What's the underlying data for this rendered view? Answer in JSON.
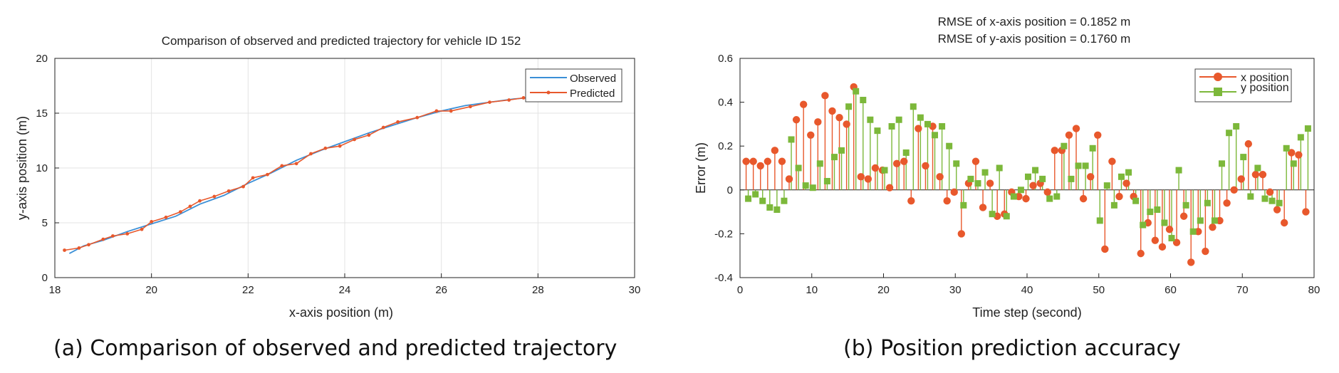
{
  "captions": {
    "a": "(a) Comparison of observed and predicted trajectory",
    "b": "(b) Position prediction accuracy"
  },
  "chart_data": [
    {
      "type": "line",
      "title": "Comparison of observed and predicted trajectory for vehicle ID  152",
      "xlabel": "x-axis position (m)",
      "ylabel": "y-axis position (m)",
      "xlim": [
        18,
        30
      ],
      "ylim": [
        0,
        20
      ],
      "xticks": [
        18,
        20,
        22,
        24,
        26,
        28,
        30
      ],
      "yticks": [
        0,
        5,
        10,
        15,
        20
      ],
      "grid": true,
      "legend_position": "top-right",
      "series": [
        {
          "name": "Observed",
          "color": "#3b8fd6",
          "marker": "none",
          "x": [
            18.3,
            18.6,
            19.0,
            19.5,
            20.0,
            20.5,
            21.0,
            21.5,
            22.0,
            22.5,
            23.0,
            23.5,
            24.0,
            24.5,
            25.0,
            25.5,
            26.0,
            26.5,
            27.0,
            27.5,
            27.8
          ],
          "y": [
            2.2,
            2.9,
            3.4,
            4.2,
            4.9,
            5.6,
            6.7,
            7.5,
            8.6,
            9.6,
            10.7,
            11.6,
            12.4,
            13.2,
            13.9,
            14.6,
            15.2,
            15.7,
            16.0,
            16.3,
            16.4
          ]
        },
        {
          "name": "Predicted",
          "color": "#e8582c",
          "marker": "dot",
          "x": [
            18.2,
            18.5,
            18.7,
            19.0,
            19.2,
            19.5,
            19.8,
            20.0,
            20.3,
            20.6,
            20.8,
            21.0,
            21.3,
            21.6,
            21.9,
            22.1,
            22.4,
            22.7,
            23.0,
            23.3,
            23.6,
            23.9,
            24.2,
            24.5,
            24.8,
            25.1,
            25.5,
            25.9,
            26.2,
            26.6,
            27.0,
            27.4,
            27.7
          ],
          "y": [
            2.5,
            2.7,
            3.0,
            3.5,
            3.8,
            4.0,
            4.4,
            5.1,
            5.5,
            6.0,
            6.5,
            7.0,
            7.4,
            7.9,
            8.3,
            9.1,
            9.4,
            10.2,
            10.4,
            11.3,
            11.8,
            12.0,
            12.6,
            13.0,
            13.7,
            14.2,
            14.6,
            15.2,
            15.2,
            15.6,
            16.0,
            16.2,
            16.4
          ]
        }
      ]
    },
    {
      "type": "stem",
      "title": "RMSE of x-axis position = 0.1852 m",
      "subtitle": "RMSE of y-axis position = 0.1760 m",
      "xlabel": "Time step (second)",
      "ylabel": "Error (m)",
      "xlim": [
        0,
        80
      ],
      "ylim": [
        -0.4,
        0.6
      ],
      "xticks": [
        0,
        10,
        20,
        30,
        40,
        50,
        60,
        70,
        80
      ],
      "yticks": [
        -0.4,
        -0.2,
        0,
        0.2,
        0.4,
        0.6
      ],
      "grid": false,
      "legend_position": "top-right",
      "x": [
        1,
        2,
        3,
        4,
        5,
        6,
        7,
        8,
        9,
        10,
        11,
        12,
        13,
        14,
        15,
        16,
        17,
        18,
        19,
        20,
        21,
        22,
        23,
        24,
        25,
        26,
        27,
        28,
        29,
        30,
        31,
        32,
        33,
        34,
        35,
        36,
        37,
        38,
        39,
        40,
        41,
        42,
        43,
        44,
        45,
        46,
        47,
        48,
        49,
        50,
        51,
        52,
        53,
        54,
        55,
        56,
        57,
        58,
        59,
        60,
        61,
        62,
        63,
        64,
        65,
        66,
        67,
        68,
        69,
        70,
        71,
        72,
        73,
        74,
        75,
        76,
        77,
        78,
        79
      ],
      "series": [
        {
          "name": "x position",
          "color": "#e8582c",
          "marker": "circle",
          "values": [
            0.13,
            0.13,
            0.11,
            0.13,
            0.18,
            0.13,
            0.05,
            0.32,
            0.39,
            0.25,
            0.31,
            0.43,
            0.36,
            0.33,
            0.3,
            0.47,
            0.06,
            0.05,
            0.1,
            0.09,
            0.01,
            0.12,
            0.13,
            -0.05,
            0.28,
            0.11,
            0.29,
            0.06,
            -0.05,
            -0.01,
            -0.2,
            0.03,
            0.13,
            -0.08,
            0.03,
            -0.12,
            -0.11,
            -0.01,
            -0.03,
            -0.04,
            0.02,
            0.03,
            -0.01,
            0.18,
            0.18,
            0.25,
            0.28,
            -0.04,
            0.06,
            0.25,
            -0.27,
            0.13,
            -0.03,
            0.03,
            -0.03,
            -0.29,
            -0.15,
            -0.23,
            -0.26,
            -0.18,
            -0.24,
            -0.12,
            -0.33,
            -0.19,
            -0.28,
            -0.17,
            -0.14,
            -0.06,
            0.0,
            0.05,
            0.21,
            0.07,
            0.07,
            -0.01,
            -0.09,
            -0.15,
            0.17,
            0.16,
            -0.1
          ],
          "x": [
            1,
            2,
            3,
            4,
            5,
            6,
            7,
            8,
            9,
            10,
            11,
            12,
            13,
            14,
            15,
            16,
            17,
            18,
            19,
            20,
            21,
            22,
            23,
            24,
            25,
            26,
            27,
            28,
            29,
            30,
            31,
            32,
            33,
            34,
            35,
            36,
            37,
            38,
            39,
            40,
            41,
            42,
            43,
            44,
            45,
            46,
            47,
            48,
            49,
            50,
            51,
            52,
            53,
            54,
            55,
            56,
            57,
            58,
            59,
            60,
            61,
            62,
            63,
            64,
            65,
            66,
            67,
            68,
            69,
            70,
            71,
            72,
            73,
            74,
            75,
            76,
            77,
            78,
            79
          ]
        },
        {
          "name": "y position",
          "color": "#7cb83a",
          "marker": "square",
          "values": [
            -0.04,
            -0.02,
            -0.05,
            -0.08,
            -0.09,
            -0.05,
            0.23,
            0.1,
            0.02,
            0.01,
            0.12,
            0.04,
            0.15,
            0.18,
            0.38,
            0.45,
            0.41,
            0.32,
            0.27,
            0.09,
            0.29,
            0.32,
            0.17,
            0.38,
            0.33,
            0.3,
            0.25,
            0.29,
            0.2,
            0.12,
            -0.07,
            0.05,
            0.03,
            0.08,
            -0.11,
            0.1,
            -0.12,
            -0.03,
            0.0,
            0.06,
            0.09,
            0.05,
            -0.04,
            -0.03,
            0.2,
            0.05,
            0.11,
            0.11,
            0.19,
            -0.14,
            0.02,
            -0.07,
            0.06,
            0.08,
            -0.05,
            -0.16,
            -0.1,
            -0.09,
            -0.15,
            -0.22,
            0.09,
            -0.07,
            -0.19,
            -0.14,
            -0.06,
            -0.14,
            0.12,
            0.26,
            0.29,
            0.15,
            -0.03,
            0.1,
            -0.04,
            -0.05,
            -0.06,
            0.19,
            0.12,
            0.24,
            0.28
          ],
          "x": [
            1,
            2,
            3,
            4,
            5,
            6,
            7,
            8,
            9,
            10,
            11,
            12,
            13,
            14,
            15,
            16,
            17,
            18,
            19,
            20,
            21,
            22,
            23,
            24,
            25,
            26,
            27,
            28,
            29,
            30,
            31,
            32,
            33,
            34,
            35,
            36,
            37,
            38,
            39,
            40,
            41,
            42,
            43,
            44,
            45,
            46,
            47,
            48,
            49,
            50,
            51,
            52,
            53,
            54,
            55,
            56,
            57,
            58,
            59,
            60,
            61,
            62,
            63,
            64,
            65,
            66,
            67,
            68,
            69,
            70,
            71,
            72,
            73,
            74,
            75,
            76,
            77,
            78,
            79
          ]
        }
      ]
    }
  ]
}
